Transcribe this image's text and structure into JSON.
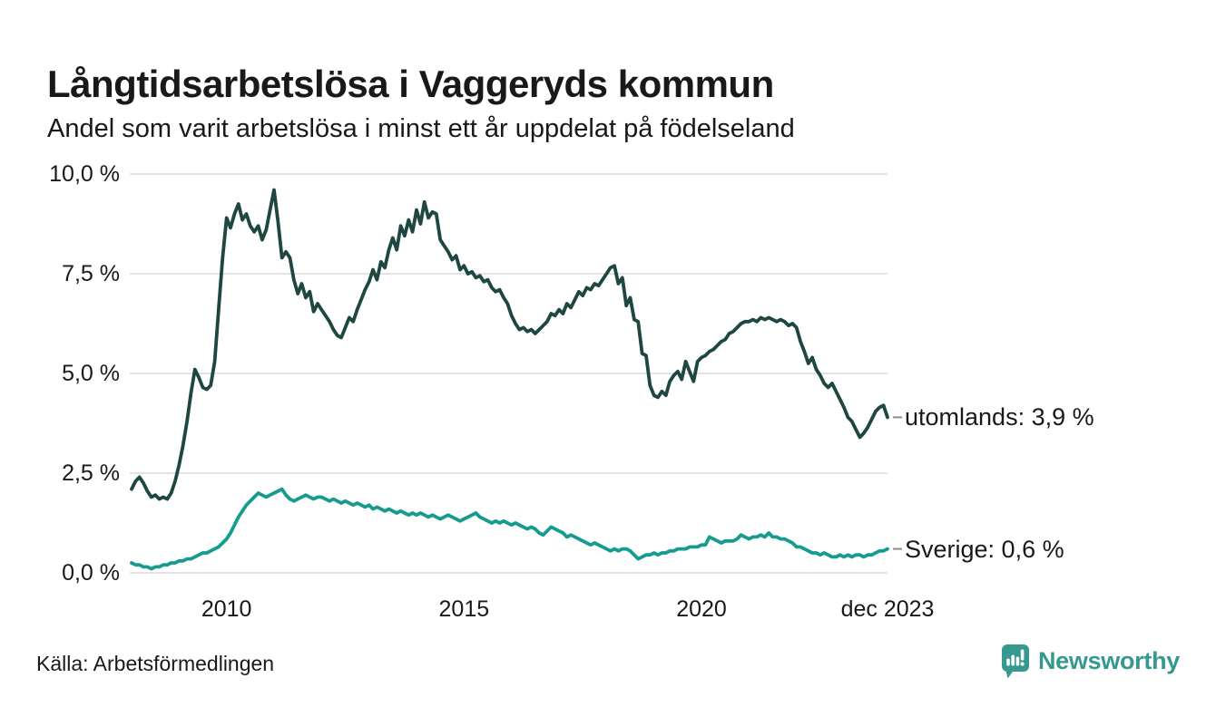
{
  "header": {
    "title": "Långtidsarbetslösa i Vaggeryds kommun",
    "subtitle": "Andel som varit arbetslösa i minst ett år uppdelat på födelseland"
  },
  "footer": {
    "source": "Källa: Arbetsförmedlingen",
    "brand": "Newsworthy"
  },
  "colors": {
    "text": "#191919",
    "grid": "#e3e3e3",
    "dash": "#8c8c8c",
    "utomlands": "#1e4741",
    "sverige": "#169b8f",
    "brand": "#35998f"
  },
  "chart_data": {
    "type": "line",
    "title": "Långtidsarbetslösa i Vaggeryds kommun",
    "subtitle": "Andel som varit arbetslösa i minst ett år uppdelat på födelseland",
    "source": "Källa: Arbetsförmedlingen",
    "ylabel": "",
    "xlabel": "",
    "ylim": [
      0,
      10
    ],
    "grid": "horizontal",
    "legend_position": "right-end-labels",
    "months": 192,
    "x_start_estimate": "jan 2008",
    "x_end": "dec 2023",
    "plot": {
      "x0": 145,
      "x1": 978,
      "gx0": 143,
      "y0": 632,
      "y1": 192,
      "vmax": 10
    },
    "y_ticks": [
      {
        "label": "0,0 %",
        "value": 0
      },
      {
        "label": "2,5 %",
        "value": 2.5
      },
      {
        "label": "5,0 %",
        "value": 5
      },
      {
        "label": "7,5 %",
        "value": 7.5
      },
      {
        "label": "10,0 %",
        "value": 10
      }
    ],
    "x_ticks": [
      {
        "label": "2010",
        "month": 24
      },
      {
        "label": "2015",
        "month": 84
      },
      {
        "label": "2020",
        "month": 144
      },
      {
        "label": "dec 2023",
        "month": 191
      }
    ],
    "series": [
      {
        "name": "utomlands",
        "end_label": "utomlands: 3,9 %",
        "end_value": "3,9 %",
        "color": "#1e4741",
        "values": [
          2.1,
          2.3,
          2.4,
          2.25,
          2.05,
          1.9,
          1.95,
          1.85,
          1.9,
          1.85,
          2.0,
          2.3,
          2.7,
          3.2,
          3.8,
          4.5,
          5.1,
          4.9,
          4.65,
          4.6,
          4.7,
          5.3,
          6.6,
          7.9,
          8.9,
          8.65,
          9.0,
          9.25,
          8.85,
          9.0,
          8.7,
          8.55,
          8.7,
          8.35,
          8.6,
          9.1,
          9.6,
          8.8,
          7.9,
          8.05,
          7.9,
          7.35,
          7.0,
          7.25,
          6.9,
          7.05,
          6.55,
          6.75,
          6.6,
          6.45,
          6.3,
          6.1,
          5.95,
          5.9,
          6.15,
          6.4,
          6.3,
          6.6,
          6.85,
          7.1,
          7.3,
          7.6,
          7.35,
          7.8,
          7.65,
          8.1,
          8.4,
          8.1,
          8.7,
          8.45,
          8.85,
          8.55,
          9.1,
          8.75,
          9.3,
          8.9,
          9.05,
          9.0,
          8.35,
          8.2,
          8.05,
          7.85,
          7.95,
          7.6,
          7.7,
          7.5,
          7.55,
          7.4,
          7.45,
          7.3,
          7.35,
          7.15,
          7.05,
          7.1,
          6.9,
          6.75,
          6.45,
          6.25,
          6.1,
          6.15,
          6.05,
          6.1,
          6.0,
          6.1,
          6.2,
          6.3,
          6.5,
          6.45,
          6.6,
          6.5,
          6.75,
          6.65,
          6.85,
          7.05,
          6.95,
          7.15,
          7.1,
          7.25,
          7.2,
          7.35,
          7.5,
          7.65,
          7.7,
          7.25,
          7.4,
          6.7,
          6.9,
          6.35,
          6.3,
          5.5,
          5.45,
          4.7,
          4.45,
          4.4,
          4.55,
          4.45,
          4.8,
          4.95,
          5.05,
          4.85,
          5.3,
          5.05,
          4.8,
          5.3,
          5.4,
          5.45,
          5.55,
          5.6,
          5.7,
          5.8,
          5.85,
          6.0,
          6.05,
          6.15,
          6.25,
          6.3,
          6.3,
          6.35,
          6.3,
          6.4,
          6.35,
          6.4,
          6.35,
          6.3,
          6.35,
          6.3,
          6.2,
          6.25,
          6.15,
          5.8,
          5.55,
          5.25,
          5.4,
          5.1,
          4.95,
          4.75,
          4.65,
          4.75,
          4.55,
          4.35,
          4.15,
          3.9,
          3.8,
          3.6,
          3.4,
          3.5,
          3.65,
          3.85,
          4.05,
          4.15,
          4.2,
          3.9
        ]
      },
      {
        "name": "Sverige",
        "end_label": "Sverige: 0,6 %",
        "end_value": "0,6 %",
        "color": "#169b8f",
        "values": [
          0.25,
          0.2,
          0.2,
          0.15,
          0.15,
          0.1,
          0.15,
          0.15,
          0.2,
          0.2,
          0.25,
          0.25,
          0.3,
          0.3,
          0.35,
          0.35,
          0.4,
          0.45,
          0.5,
          0.5,
          0.55,
          0.6,
          0.65,
          0.75,
          0.85,
          1.0,
          1.2,
          1.4,
          1.55,
          1.7,
          1.8,
          1.9,
          2.0,
          1.95,
          1.9,
          1.95,
          2.0,
          2.05,
          2.1,
          1.95,
          1.85,
          1.8,
          1.85,
          1.9,
          1.95,
          1.9,
          1.85,
          1.9,
          1.9,
          1.85,
          1.8,
          1.85,
          1.8,
          1.75,
          1.8,
          1.75,
          1.7,
          1.75,
          1.7,
          1.65,
          1.7,
          1.6,
          1.65,
          1.6,
          1.55,
          1.6,
          1.55,
          1.5,
          1.55,
          1.5,
          1.45,
          1.5,
          1.45,
          1.5,
          1.45,
          1.4,
          1.45,
          1.4,
          1.35,
          1.4,
          1.45,
          1.4,
          1.35,
          1.3,
          1.35,
          1.4,
          1.45,
          1.5,
          1.4,
          1.35,
          1.3,
          1.25,
          1.3,
          1.25,
          1.3,
          1.25,
          1.2,
          1.25,
          1.2,
          1.15,
          1.1,
          1.15,
          1.1,
          1.0,
          0.95,
          1.05,
          1.15,
          1.1,
          1.05,
          1.0,
          0.9,
          0.95,
          0.9,
          0.85,
          0.8,
          0.75,
          0.7,
          0.75,
          0.7,
          0.65,
          0.6,
          0.55,
          0.6,
          0.55,
          0.6,
          0.6,
          0.55,
          0.45,
          0.35,
          0.4,
          0.45,
          0.45,
          0.5,
          0.45,
          0.5,
          0.5,
          0.55,
          0.55,
          0.6,
          0.6,
          0.6,
          0.65,
          0.65,
          0.65,
          0.7,
          0.7,
          0.9,
          0.85,
          0.8,
          0.75,
          0.8,
          0.8,
          0.8,
          0.85,
          0.95,
          0.9,
          0.85,
          0.9,
          0.9,
          0.95,
          0.9,
          1.0,
          0.9,
          0.9,
          0.85,
          0.85,
          0.8,
          0.75,
          0.65,
          0.65,
          0.6,
          0.55,
          0.5,
          0.5,
          0.45,
          0.5,
          0.45,
          0.4,
          0.4,
          0.45,
          0.4,
          0.45,
          0.4,
          0.45,
          0.45,
          0.4,
          0.45,
          0.45,
          0.5,
          0.55,
          0.55,
          0.6
        ]
      }
    ]
  }
}
